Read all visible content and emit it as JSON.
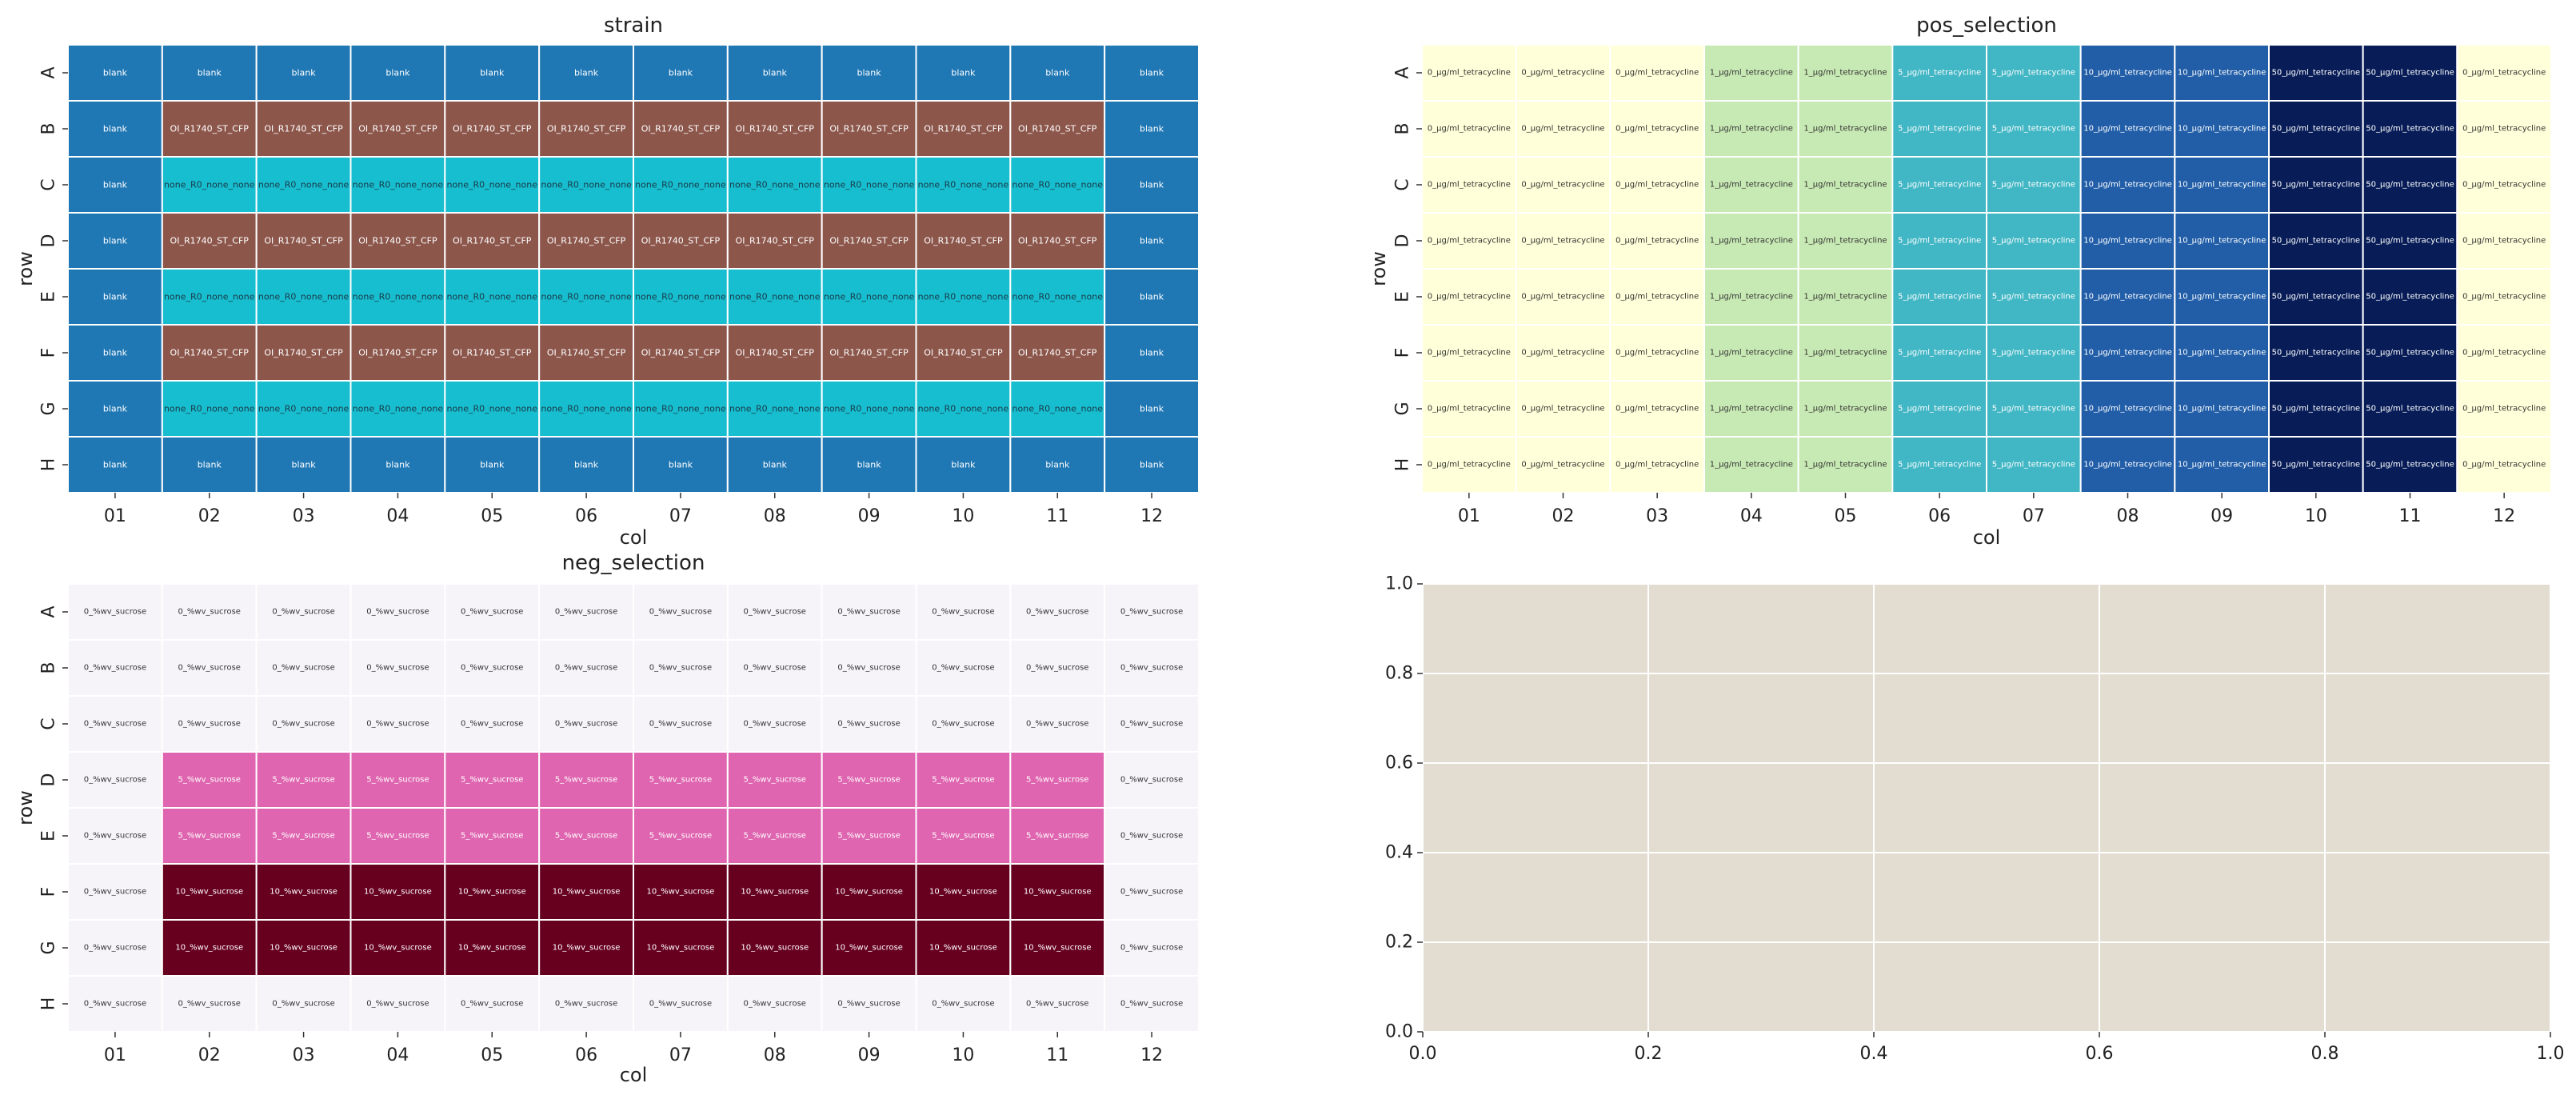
{
  "chart_data": [
    {
      "type": "heatmap",
      "title": "strain",
      "xlabel": "col",
      "ylabel": "row",
      "rows": [
        "A",
        "B",
        "C",
        "D",
        "E",
        "F",
        "G",
        "H"
      ],
      "cols": [
        "01",
        "02",
        "03",
        "04",
        "05",
        "06",
        "07",
        "08",
        "09",
        "10",
        "11",
        "12"
      ],
      "values": [
        [
          "blank",
          "blank",
          "blank",
          "blank",
          "blank",
          "blank",
          "blank",
          "blank",
          "blank",
          "blank",
          "blank",
          "blank"
        ],
        [
          "blank",
          "OI_R1740_ST_CFP",
          "OI_R1740_ST_CFP",
          "OI_R1740_ST_CFP",
          "OI_R1740_ST_CFP",
          "OI_R1740_ST_CFP",
          "OI_R1740_ST_CFP",
          "OI_R1740_ST_CFP",
          "OI_R1740_ST_CFP",
          "OI_R1740_ST_CFP",
          "OI_R1740_ST_CFP",
          "blank"
        ],
        [
          "blank",
          "none_R0_none_none",
          "none_R0_none_none",
          "none_R0_none_none",
          "none_R0_none_none",
          "none_R0_none_none",
          "none_R0_none_none",
          "none_R0_none_none",
          "none_R0_none_none",
          "none_R0_none_none",
          "none_R0_none_none",
          "blank"
        ],
        [
          "blank",
          "OI_R1740_ST_CFP",
          "OI_R1740_ST_CFP",
          "OI_R1740_ST_CFP",
          "OI_R1740_ST_CFP",
          "OI_R1740_ST_CFP",
          "OI_R1740_ST_CFP",
          "OI_R1740_ST_CFP",
          "OI_R1740_ST_CFP",
          "OI_R1740_ST_CFP",
          "OI_R1740_ST_CFP",
          "blank"
        ],
        [
          "blank",
          "none_R0_none_none",
          "none_R0_none_none",
          "none_R0_none_none",
          "none_R0_none_none",
          "none_R0_none_none",
          "none_R0_none_none",
          "none_R0_none_none",
          "none_R0_none_none",
          "none_R0_none_none",
          "none_R0_none_none",
          "blank"
        ],
        [
          "blank",
          "OI_R1740_ST_CFP",
          "OI_R1740_ST_CFP",
          "OI_R1740_ST_CFP",
          "OI_R1740_ST_CFP",
          "OI_R1740_ST_CFP",
          "OI_R1740_ST_CFP",
          "OI_R1740_ST_CFP",
          "OI_R1740_ST_CFP",
          "OI_R1740_ST_CFP",
          "OI_R1740_ST_CFP",
          "blank"
        ],
        [
          "blank",
          "none_R0_none_none",
          "none_R0_none_none",
          "none_R0_none_none",
          "none_R0_none_none",
          "none_R0_none_none",
          "none_R0_none_none",
          "none_R0_none_none",
          "none_R0_none_none",
          "none_R0_none_none",
          "none_R0_none_none",
          "blank"
        ],
        [
          "blank",
          "blank",
          "blank",
          "blank",
          "blank",
          "blank",
          "blank",
          "blank",
          "blank",
          "blank",
          "blank",
          "blank"
        ]
      ],
      "colors": {
        "blank": "#1f77b4",
        "OI_R1740_ST_CFP": "#8c564b",
        "none_R0_none_none": "#17becf"
      },
      "text_colors": {
        "blank": "#ffffff",
        "OI_R1740_ST_CFP": "#ffffff",
        "none_R0_none_none": "#1a3a4a"
      }
    },
    {
      "type": "heatmap",
      "title": "pos_selection",
      "xlabel": "col",
      "ylabel": "row",
      "rows": [
        "A",
        "B",
        "C",
        "D",
        "E",
        "F",
        "G",
        "H"
      ],
      "cols": [
        "01",
        "02",
        "03",
        "04",
        "05",
        "06",
        "07",
        "08",
        "09",
        "10",
        "11",
        "12"
      ],
      "column_values": [
        "0_µg/ml_tetracycline",
        "0_µg/ml_tetracycline",
        "0_µg/ml_tetracycline",
        "1_µg/ml_tetracycline",
        "1_µg/ml_tetracycline",
        "5_µg/ml_tetracycline",
        "5_µg/ml_tetracycline",
        "10_µg/ml_tetracycline",
        "10_µg/ml_tetracycline",
        "50_µg/ml_tetracycline",
        "50_µg/ml_tetracycline",
        "0_µg/ml_tetracycline"
      ],
      "colors": {
        "0_µg/ml_tetracycline": "#ffffd9",
        "1_µg/ml_tetracycline": "#c7e9b4",
        "5_µg/ml_tetracycline": "#41b6c4",
        "10_µg/ml_tetracycline": "#225ea8",
        "50_µg/ml_tetracycline": "#081d58"
      },
      "text_colors": {
        "0_µg/ml_tetracycline": "#333333",
        "1_µg/ml_tetracycline": "#333333",
        "5_µg/ml_tetracycline": "#ffffff",
        "10_µg/ml_tetracycline": "#ffffff",
        "50_µg/ml_tetracycline": "#ffffff"
      }
    },
    {
      "type": "heatmap",
      "title": "neg_selection",
      "xlabel": "col",
      "ylabel": "row",
      "rows": [
        "A",
        "B",
        "C",
        "D",
        "E",
        "F",
        "G",
        "H"
      ],
      "cols": [
        "01",
        "02",
        "03",
        "04",
        "05",
        "06",
        "07",
        "08",
        "09",
        "10",
        "11",
        "12"
      ],
      "row_values": [
        "0_%wv_sucrose",
        "0_%wv_sucrose",
        "0_%wv_sucrose",
        "5_%wv_sucrose",
        "5_%wv_sucrose",
        "10_%wv_sucrose",
        "10_%wv_sucrose",
        "0_%wv_sucrose"
      ],
      "edge_value": "0_%wv_sucrose",
      "colors": {
        "0_%wv_sucrose": "#f7f4f9",
        "5_%wv_sucrose": "#df65b0",
        "10_%wv_sucrose": "#67001f"
      },
      "text_colors": {
        "0_%wv_sucrose": "#333333",
        "5_%wv_sucrose": "#ffffff",
        "10_%wv_sucrose": "#ffffff"
      }
    },
    {
      "type": "line",
      "title": "",
      "xlabel": "",
      "ylabel": "",
      "xlim": [
        0,
        1
      ],
      "ylim": [
        0,
        1
      ],
      "xticks": [
        "0.0",
        "0.2",
        "0.4",
        "0.6",
        "0.8",
        "1.0"
      ],
      "yticks": [
        "0.0",
        "0.2",
        "0.4",
        "0.6",
        "0.8",
        "1.0"
      ],
      "series": [],
      "grid": true,
      "background": "#e3ddd1"
    }
  ]
}
